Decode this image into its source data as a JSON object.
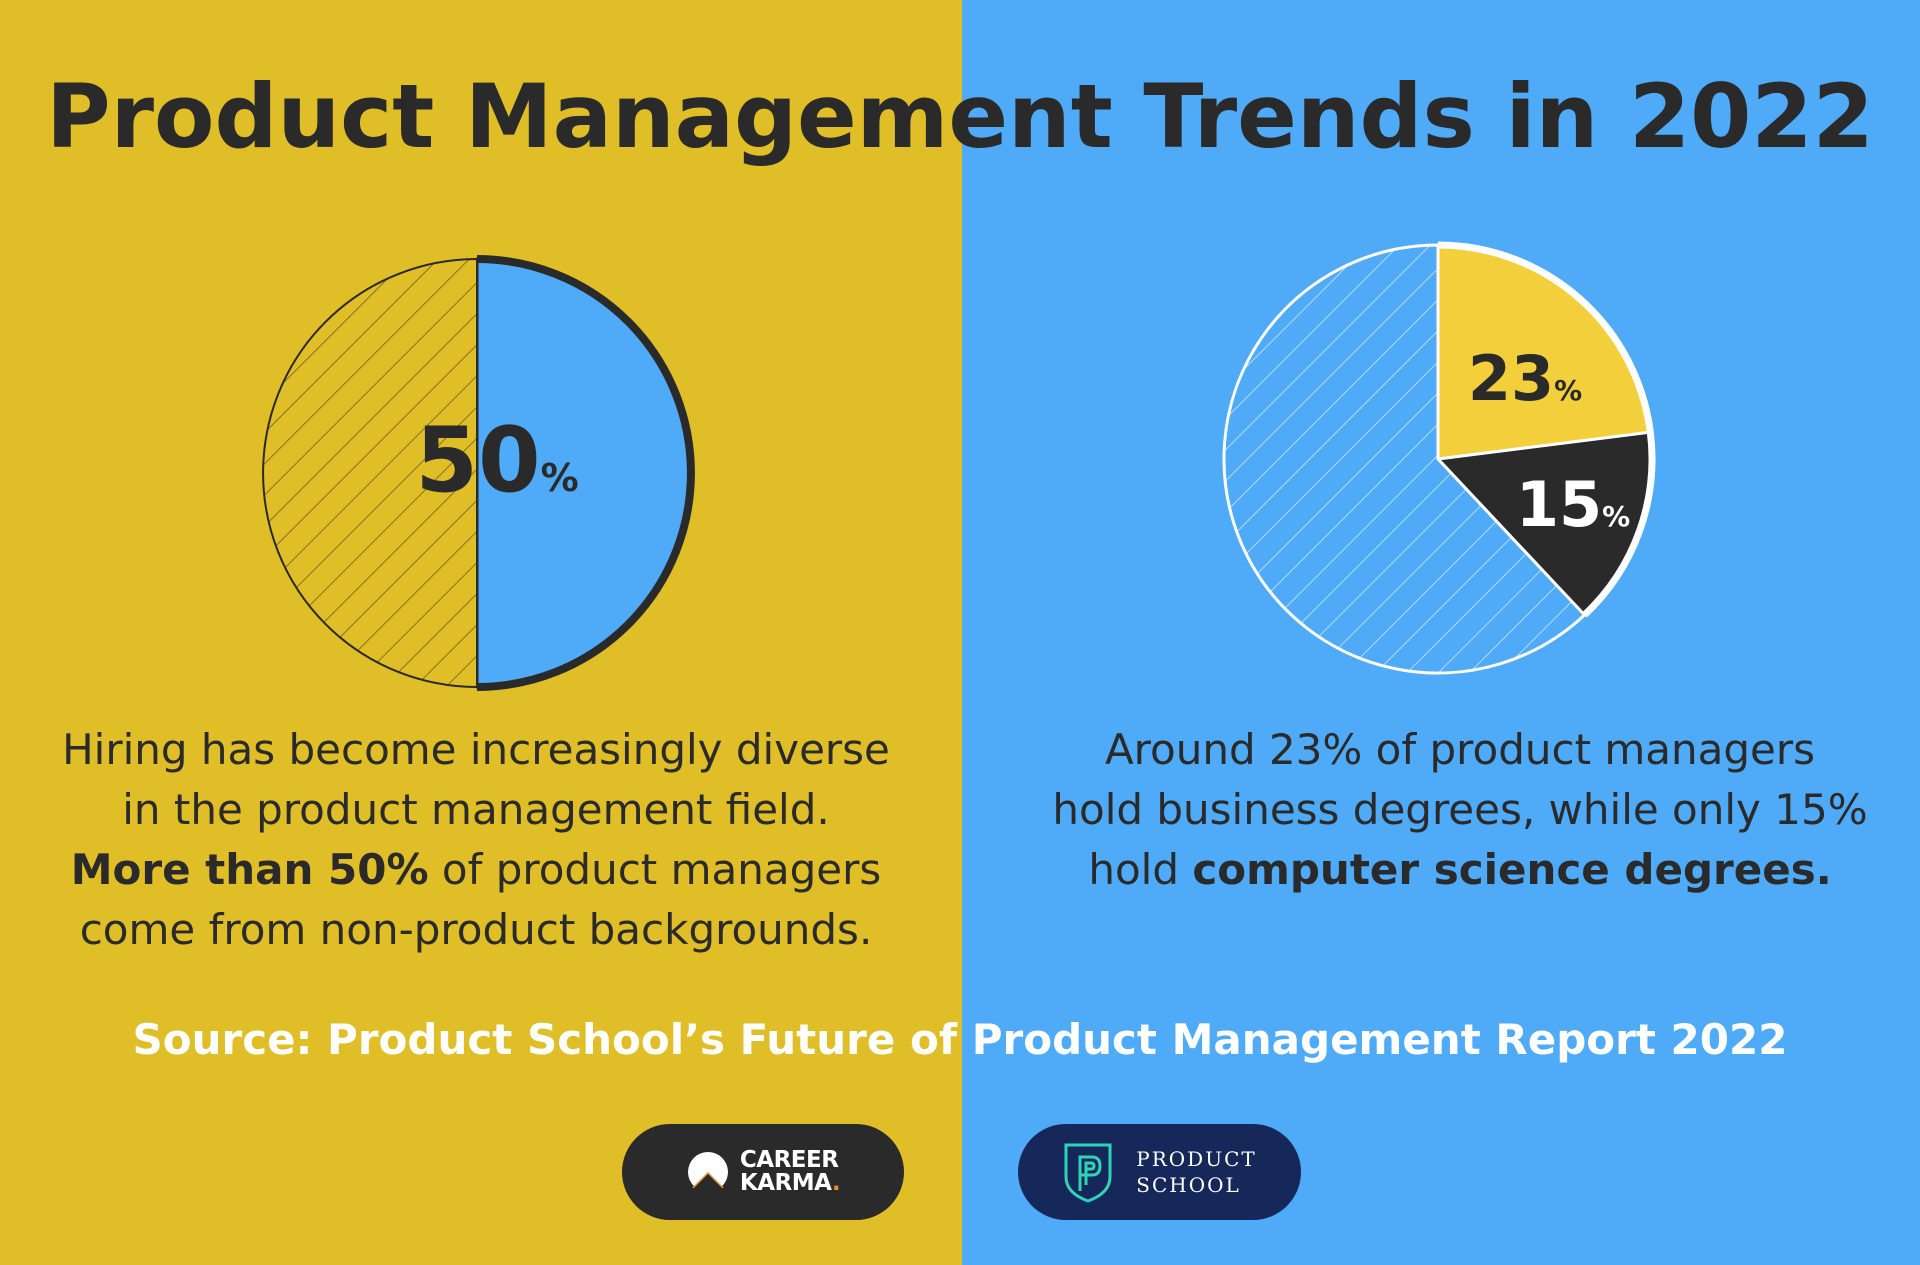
{
  "title": "Product Management Trends in 2022",
  "colors": {
    "left_bg": "#E0BE27",
    "right_bg": "#4FAAF8",
    "dark": "#2A2A2A",
    "slice_yellow": "#F4CF3C",
    "white": "#FFFFFF",
    "navy": "#16285A"
  },
  "left": {
    "caption_line1": "Hiring has become increasingly diverse",
    "caption_line2": "in the product management field.",
    "caption_bold": "More than 50%",
    "caption_line3_rest": " of product managers",
    "caption_line4": "come from non-product backgrounds."
  },
  "right": {
    "caption_line1": "Around 23% of product managers",
    "caption_line2": "hold business degrees, while only 15%",
    "caption_line3_start": "hold ",
    "caption_bold": "computer science degrees."
  },
  "source": "Source: Product School’s Future of Product Management Report 2022",
  "logos": {
    "career_karma_line1": "CAREER",
    "career_karma_line2": "KARMA",
    "career_karma_dot": ".",
    "product_school_line1": "PRODUCT",
    "product_school_line2": "SCHOOL",
    "career_icon": "mountain-sun-icon",
    "school_icon": "shield-p-icon"
  },
  "chart_data": [
    {
      "type": "pie",
      "slices": [
        {
          "value": 50,
          "label": "50",
          "unit": "%",
          "style": "solid-blue"
        },
        {
          "value": 50,
          "label": "",
          "unit": "",
          "style": "hatched"
        }
      ]
    },
    {
      "type": "pie",
      "slices": [
        {
          "value": 23,
          "label": "23",
          "unit": "%",
          "style": "solid-yellow"
        },
        {
          "value": 15,
          "label": "15",
          "unit": "%",
          "style": "solid-dark"
        },
        {
          "value": 62,
          "label": "",
          "unit": "",
          "style": "hatched"
        }
      ]
    }
  ]
}
